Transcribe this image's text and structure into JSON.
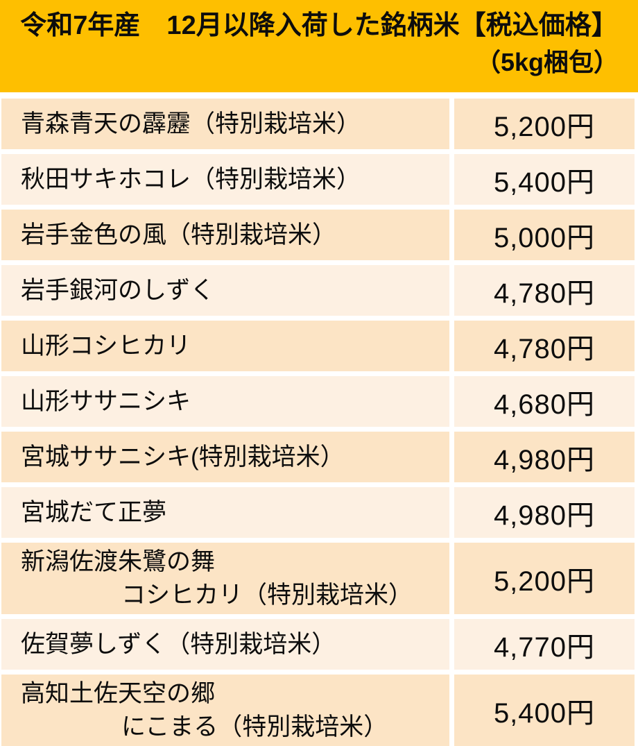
{
  "header": {
    "title_line1": "令和7年産　12月以降入荷した銘柄米【税込価格】",
    "title_line2": "（5kg梱包）"
  },
  "table": {
    "name_column": "銘柄米",
    "price_column": "税込価格",
    "rows": [
      {
        "name_line1": "青森青天の霹靂（特別栽培米）",
        "price": "5,200円"
      },
      {
        "name_line1": "秋田サキホコレ（特別栽培米）",
        "price": "5,400円"
      },
      {
        "name_line1": "岩手金色の風（特別栽培米）",
        "price": "5,000円"
      },
      {
        "name_line1": "岩手銀河のしずく",
        "price": "4,780円"
      },
      {
        "name_line1": "山形コシヒカリ",
        "price": "4,780円"
      },
      {
        "name_line1": "山形ササニシキ",
        "price": "4,680円"
      },
      {
        "name_line1": "宮城ササニシキ(特別栽培米）",
        "price": "4,980円"
      },
      {
        "name_line1": "宮城だて正夢",
        "price": "4,980円"
      },
      {
        "name_line1": "新潟佐渡朱鷺の舞",
        "name_line2": "コシヒカリ（特別栽培米）",
        "price": "5,200円"
      },
      {
        "name_line1": "佐賀夢しずく（特別栽培米）",
        "price": "4,770円"
      },
      {
        "name_line1": "高知土佐天空の郷",
        "name_line2": "にこまる（特別栽培米）",
        "price": "5,400円"
      }
    ]
  },
  "colors": {
    "header_bg": "#FEBF00",
    "row_dark_bg": "#FCE4C5",
    "row_light_bg": "#FDF0E2",
    "text": "#0d0d0d",
    "gutter": "#FFFFFF"
  }
}
